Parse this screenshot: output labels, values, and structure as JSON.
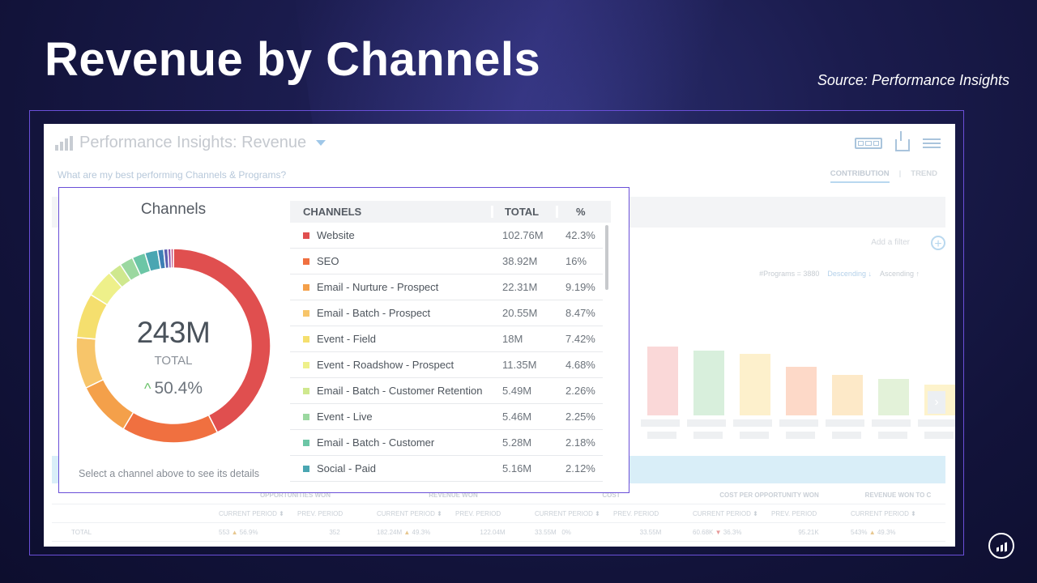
{
  "slide": {
    "title": "Revenue by Channels",
    "source": "Source:  Performance Insights"
  },
  "app": {
    "title": "Performance Insights: Revenue",
    "question": "What are my best performing Channels & Programs?",
    "tabs": [
      "CONTRIBUTION",
      "TREND"
    ],
    "add_filter": "Add a filter",
    "sort": {
      "count": "#Programs = 3880",
      "descending": "Descending ↓",
      "ascending": "Ascending ↑"
    },
    "bars": {
      "values": [
        0.85,
        0.8,
        0.76,
        0.6,
        0.5,
        0.45,
        0.38
      ],
      "colors": [
        "#fad8d8",
        "#d8efdc",
        "#fdf0cc",
        "#fdd9c8",
        "#fde9c8",
        "#e3f2d9",
        "#fdf3cc"
      ]
    },
    "bottom_table": {
      "groups": [
        "OPPORTUNITIES WON",
        "REVENUE WON",
        "COST",
        "COST PER OPPORTUNITY WON",
        "REVENUE WON TO C"
      ],
      "subheaders": [
        "CURRENT PERIOD ⬍",
        "PREV. PERIOD",
        "CURRENT PERIOD ⬍",
        "PREV. PERIOD",
        "CURRENT PERIOD ⬍",
        "PREV. PERIOD",
        "CURRENT PERIOD ⬍",
        "PREV. PERIOD",
        "CURRENT PERIOD ⬍"
      ],
      "total_label": "TOTAL",
      "total": {
        "c1": "553",
        "c1_change": "56.9%",
        "c2": "352",
        "c3": "182.24M",
        "c3_change": "49.3%",
        "c4": "122.04M",
        "c5": "33.55M",
        "c5_change": "0%",
        "c6": "33.55M",
        "c7": "60.68K",
        "c7_change": "36.3%",
        "c8": "95.21K",
        "c9": "543%",
        "c9_change": "49.3%"
      }
    }
  },
  "popup": {
    "title": "Channels",
    "total_value": "243M",
    "total_label": "TOTAL",
    "change": "50.4%",
    "hint": "Select a channel above to see its details",
    "headers": {
      "channel": "CHANNELS",
      "total": "TOTAL",
      "pct": "%"
    },
    "rows": [
      {
        "name": "Website",
        "total": "102.76M",
        "pct": "42.3%",
        "color": "#e04f4f"
      },
      {
        "name": "SEO",
        "total": "38.92M",
        "pct": "16%",
        "color": "#f07040"
      },
      {
        "name": "Email - Nurture - Prospect",
        "total": "22.31M",
        "pct": "9.19%",
        "color": "#f4a04a"
      },
      {
        "name": "Email - Batch - Prospect",
        "total": "20.55M",
        "pct": "8.47%",
        "color": "#f7c56a"
      },
      {
        "name": "Event - Field",
        "total": "18M",
        "pct": "7.42%",
        "color": "#f5df6e"
      },
      {
        "name": "Event - Roadshow - Prospect",
        "total": "11.35M",
        "pct": "4.68%",
        "color": "#eef08a"
      },
      {
        "name": "Email - Batch - Customer Retention",
        "total": "5.49M",
        "pct": "2.26%",
        "color": "#cfe88e"
      },
      {
        "name": "Event - Live",
        "total": "5.46M",
        "pct": "2.25%",
        "color": "#9bd8a0"
      },
      {
        "name": "Email - Batch - Customer",
        "total": "5.28M",
        "pct": "2.18%",
        "color": "#6cc6a6"
      },
      {
        "name": "Social - Paid",
        "total": "5.16M",
        "pct": "2.12%",
        "color": "#4aa6b2"
      }
    ],
    "donut_remainder": [
      {
        "value": 1.0,
        "color": "#3d7fb5"
      },
      {
        "value": 0.7,
        "color": "#5a5fb0"
      },
      {
        "value": 0.5,
        "color": "#8a4aa8"
      },
      {
        "value": 0.4,
        "color": "#c24a7e"
      }
    ]
  }
}
